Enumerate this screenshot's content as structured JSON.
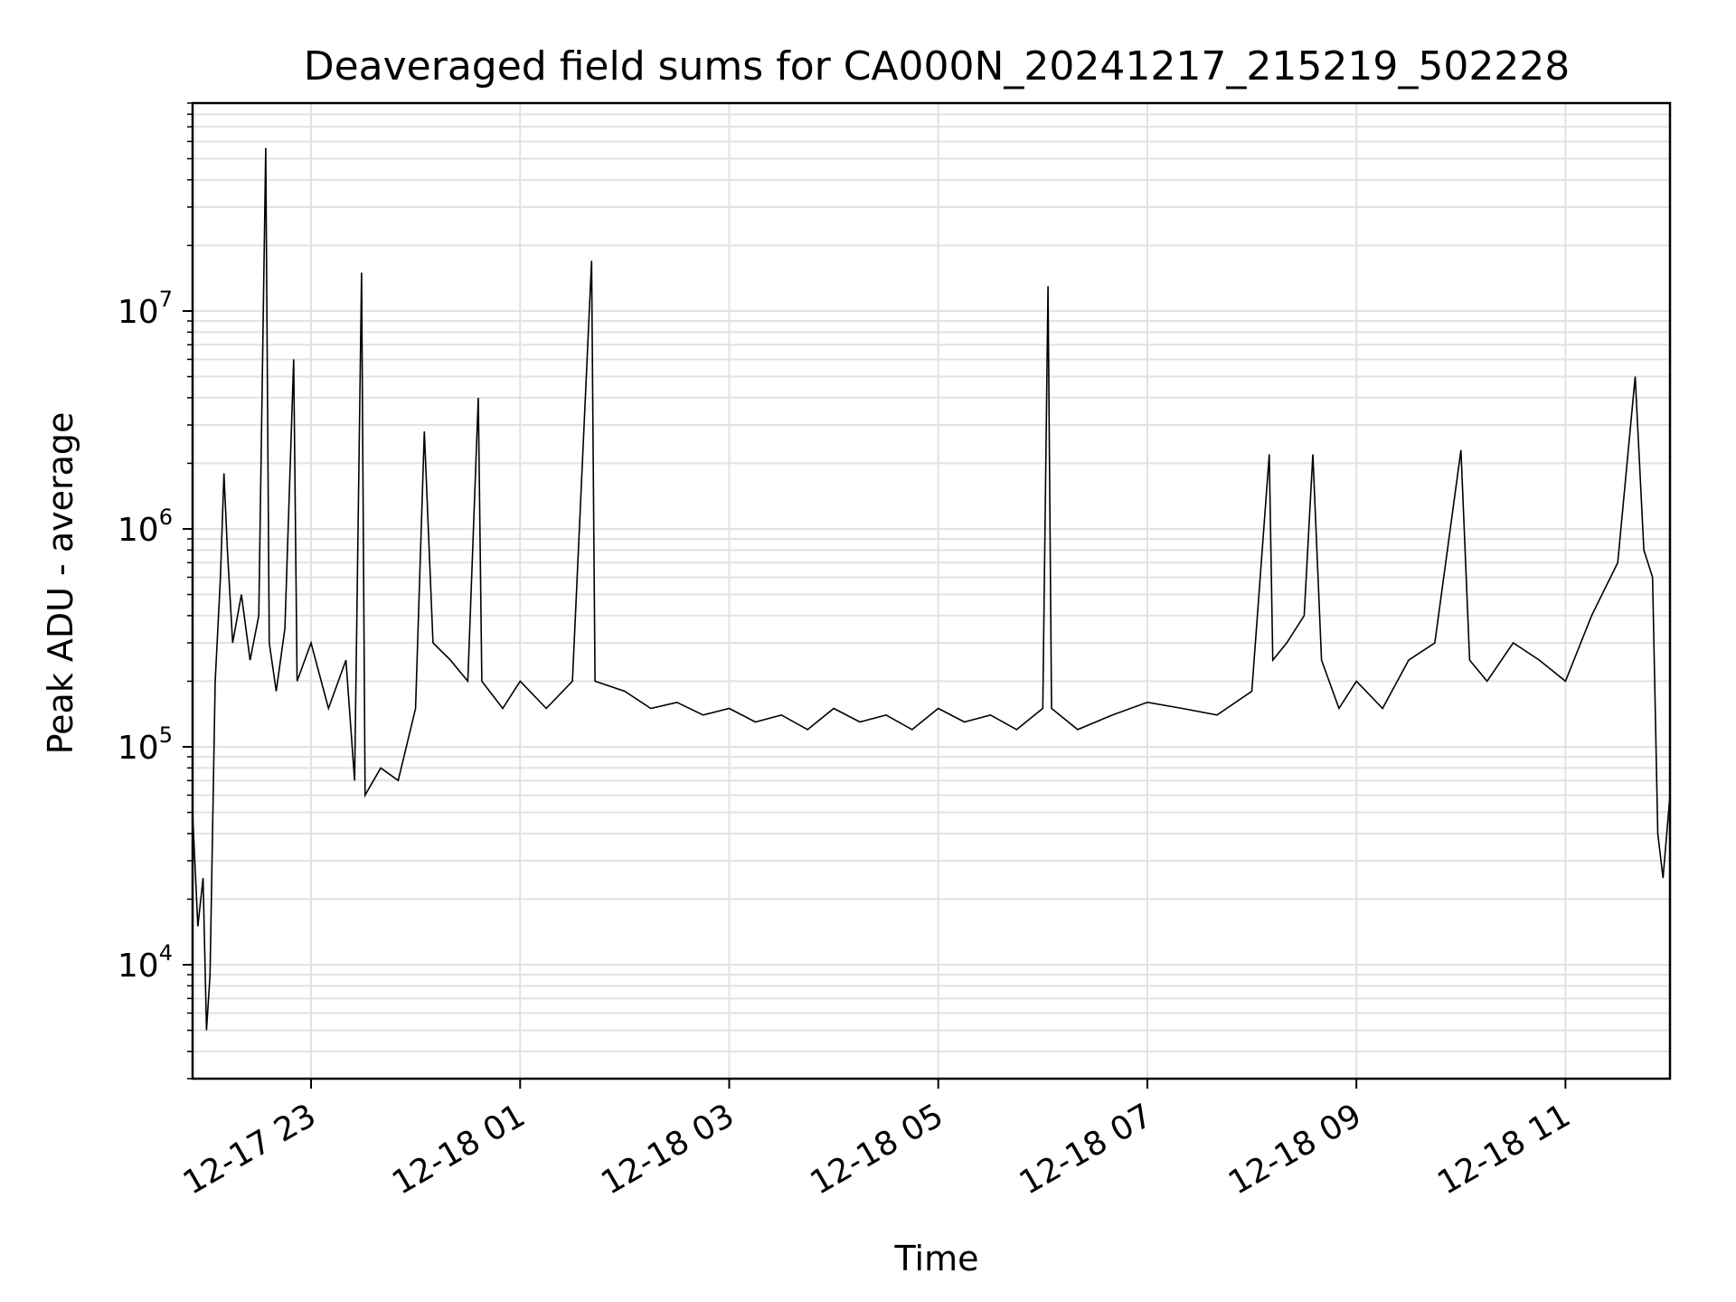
{
  "chart_data": {
    "type": "line",
    "title": "Deaveraged field sums for CA000N_20241217_215219_502228",
    "xlabel": "Time",
    "ylabel": "Peak ADU - average",
    "y_scale": "log",
    "ylim": [
      3000,
      90000000
    ],
    "y_ticks": [
      {
        "value": 10000,
        "base": "10",
        "exp": "4"
      },
      {
        "value": 100000,
        "base": "10",
        "exp": "5"
      },
      {
        "value": 1000000,
        "base": "10",
        "exp": "6"
      },
      {
        "value": 10000000,
        "base": "10",
        "exp": "7"
      }
    ],
    "xlim": [
      "2024-12-17 21:52",
      "2024-12-18 12:00"
    ],
    "x_ticks": [
      {
        "value": "2024-12-17 23:00",
        "label": "12-17 23"
      },
      {
        "value": "2024-12-18 01:00",
        "label": "12-18 01"
      },
      {
        "value": "2024-12-18 03:00",
        "label": "12-18 03"
      },
      {
        "value": "2024-12-18 05:00",
        "label": "12-18 05"
      },
      {
        "value": "2024-12-18 07:00",
        "label": "12-18 07"
      },
      {
        "value": "2024-12-18 09:00",
        "label": "12-18 09"
      },
      {
        "value": "2024-12-18 11:00",
        "label": "12-18 11"
      }
    ],
    "grid": true,
    "line_color": "#000000",
    "series": [
      {
        "points": [
          [
            "2024-12-17 21:52",
            50000
          ],
          [
            "2024-12-17 21:55",
            15000
          ],
          [
            "2024-12-17 21:58",
            25000
          ],
          [
            "2024-12-17 22:00",
            5000
          ],
          [
            "2024-12-17 22:02",
            9000
          ],
          [
            "2024-12-17 22:05",
            200000
          ],
          [
            "2024-12-17 22:08",
            600000
          ],
          [
            "2024-12-17 22:10",
            1800000
          ],
          [
            "2024-12-17 22:12",
            800000
          ],
          [
            "2024-12-17 22:15",
            300000
          ],
          [
            "2024-12-17 22:20",
            500000
          ],
          [
            "2024-12-17 22:25",
            250000
          ],
          [
            "2024-12-17 22:30",
            400000
          ],
          [
            "2024-12-17 22:34",
            56000000
          ],
          [
            "2024-12-17 22:36",
            300000
          ],
          [
            "2024-12-17 22:40",
            180000
          ],
          [
            "2024-12-17 22:45",
            350000
          ],
          [
            "2024-12-17 22:50",
            6000000
          ],
          [
            "2024-12-17 22:52",
            200000
          ],
          [
            "2024-12-17 23:00",
            300000
          ],
          [
            "2024-12-17 23:10",
            150000
          ],
          [
            "2024-12-17 23:20",
            250000
          ],
          [
            "2024-12-17 23:25",
            70000
          ],
          [
            "2024-12-17 23:29",
            15000000
          ],
          [
            "2024-12-17 23:31",
            60000
          ],
          [
            "2024-12-17 23:40",
            80000
          ],
          [
            "2024-12-17 23:50",
            70000
          ],
          [
            "2024-12-18 00:00",
            150000
          ],
          [
            "2024-12-18 00:05",
            2800000
          ],
          [
            "2024-12-18 00:10",
            300000
          ],
          [
            "2024-12-18 00:20",
            250000
          ],
          [
            "2024-12-18 00:30",
            200000
          ],
          [
            "2024-12-18 00:36",
            4000000
          ],
          [
            "2024-12-18 00:38",
            200000
          ],
          [
            "2024-12-18 00:50",
            150000
          ],
          [
            "2024-12-18 01:00",
            200000
          ],
          [
            "2024-12-18 01:15",
            150000
          ],
          [
            "2024-12-18 01:30",
            200000
          ],
          [
            "2024-12-18 01:41",
            17000000
          ],
          [
            "2024-12-18 01:43",
            200000
          ],
          [
            "2024-12-18 02:00",
            180000
          ],
          [
            "2024-12-18 02:15",
            150000
          ],
          [
            "2024-12-18 02:30",
            160000
          ],
          [
            "2024-12-18 02:45",
            140000
          ],
          [
            "2024-12-18 03:00",
            150000
          ],
          [
            "2024-12-18 03:15",
            130000
          ],
          [
            "2024-12-18 03:30",
            140000
          ],
          [
            "2024-12-18 03:45",
            120000
          ],
          [
            "2024-12-18 04:00",
            150000
          ],
          [
            "2024-12-18 04:15",
            130000
          ],
          [
            "2024-12-18 04:30",
            140000
          ],
          [
            "2024-12-18 04:45",
            120000
          ],
          [
            "2024-12-18 05:00",
            150000
          ],
          [
            "2024-12-18 05:15",
            130000
          ],
          [
            "2024-12-18 05:30",
            140000
          ],
          [
            "2024-12-18 05:45",
            120000
          ],
          [
            "2024-12-18 06:00",
            150000
          ],
          [
            "2024-12-18 06:03",
            13000000
          ],
          [
            "2024-12-18 06:05",
            150000
          ],
          [
            "2024-12-18 06:20",
            120000
          ],
          [
            "2024-12-18 06:40",
            140000
          ],
          [
            "2024-12-18 07:00",
            160000
          ],
          [
            "2024-12-18 07:20",
            150000
          ],
          [
            "2024-12-18 07:40",
            140000
          ],
          [
            "2024-12-18 08:00",
            180000
          ],
          [
            "2024-12-18 08:10",
            2200000
          ],
          [
            "2024-12-18 08:12",
            250000
          ],
          [
            "2024-12-18 08:20",
            300000
          ],
          [
            "2024-12-18 08:30",
            400000
          ],
          [
            "2024-12-18 08:35",
            2200000
          ],
          [
            "2024-12-18 08:40",
            250000
          ],
          [
            "2024-12-18 08:50",
            150000
          ],
          [
            "2024-12-18 09:00",
            200000
          ],
          [
            "2024-12-18 09:15",
            150000
          ],
          [
            "2024-12-18 09:30",
            250000
          ],
          [
            "2024-12-18 09:45",
            300000
          ],
          [
            "2024-12-18 10:00",
            2300000
          ],
          [
            "2024-12-18 10:05",
            250000
          ],
          [
            "2024-12-18 10:15",
            200000
          ],
          [
            "2024-12-18 10:30",
            300000
          ],
          [
            "2024-12-18 10:45",
            250000
          ],
          [
            "2024-12-18 11:00",
            200000
          ],
          [
            "2024-12-18 11:15",
            400000
          ],
          [
            "2024-12-18 11:30",
            700000
          ],
          [
            "2024-12-18 11:40",
            5000000
          ],
          [
            "2024-12-18 11:45",
            800000
          ],
          [
            "2024-12-18 11:50",
            600000
          ],
          [
            "2024-12-18 11:53",
            40000
          ],
          [
            "2024-12-18 11:56",
            25000
          ],
          [
            "2024-12-18 12:00",
            60000
          ]
        ]
      }
    ]
  }
}
